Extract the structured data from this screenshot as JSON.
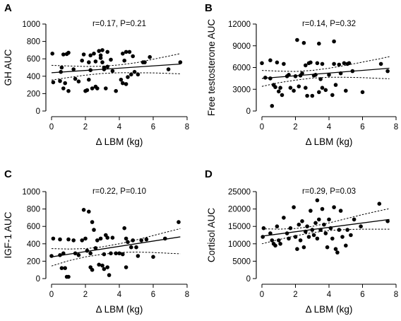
{
  "chart_data": [
    {
      "type": "scatter",
      "panel": "A",
      "stat": "r=0.17, P=0.21",
      "xlabel": "Δ LBM (kg)",
      "ylabel": "GH AUC",
      "xlim": [
        0,
        8
      ],
      "ylim": [
        0,
        1000
      ],
      "xticks": [
        "0",
        "2",
        "4",
        "6",
        "8"
      ],
      "yticks": [
        "0",
        "200",
        "400",
        "600",
        "800",
        "1000"
      ],
      "points": [
        [
          0.05,
          660
        ],
        [
          0.1,
          330
        ],
        [
          0.5,
          345
        ],
        [
          0.55,
          450
        ],
        [
          0.6,
          500
        ],
        [
          0.7,
          260
        ],
        [
          0.7,
          650
        ],
        [
          0.8,
          320
        ],
        [
          0.9,
          655
        ],
        [
          1.0,
          670
        ],
        [
          1.0,
          230
        ],
        [
          1.3,
          480
        ],
        [
          1.4,
          370
        ],
        [
          1.6,
          340
        ],
        [
          1.8,
          580
        ],
        [
          1.9,
          650
        ],
        [
          2.0,
          230
        ],
        [
          2.1,
          240
        ],
        [
          2.2,
          560
        ],
        [
          2.2,
          360
        ],
        [
          2.3,
          470
        ],
        [
          2.3,
          640
        ],
        [
          2.4,
          260
        ],
        [
          2.5,
          660
        ],
        [
          2.6,
          280
        ],
        [
          2.6,
          570
        ],
        [
          2.7,
          260
        ],
        [
          2.8,
          690
        ],
        [
          2.9,
          640
        ],
        [
          2.9,
          610
        ],
        [
          3.0,
          700
        ],
        [
          3.0,
          560
        ],
        [
          3.1,
          480
        ],
        [
          3.1,
          500
        ],
        [
          3.2,
          260
        ],
        [
          3.3,
          680
        ],
        [
          3.3,
          510
        ],
        [
          3.5,
          590
        ],
        [
          3.6,
          460
        ],
        [
          3.8,
          230
        ],
        [
          4.1,
          360
        ],
        [
          4.2,
          320
        ],
        [
          4.2,
          660
        ],
        [
          4.3,
          580
        ],
        [
          4.4,
          310
        ],
        [
          4.4,
          680
        ],
        [
          4.5,
          390
        ],
        [
          4.6,
          680
        ],
        [
          4.7,
          420
        ],
        [
          4.8,
          630
        ],
        [
          4.9,
          450
        ],
        [
          5.1,
          420
        ],
        [
          5.4,
          560
        ],
        [
          5.5,
          560
        ],
        [
          5.8,
          620
        ],
        [
          6.9,
          480
        ],
        [
          7.6,
          560
        ]
      ],
      "fit": {
        "x": [
          0,
          7.6
        ],
        "y": [
          440,
          540
        ]
      },
      "ci_upper": {
        "x": [
          0,
          1,
          2,
          3,
          4,
          5,
          6,
          7,
          7.6
        ],
        "y": [
          525,
          518,
          512,
          515,
          530,
          555,
          595,
          635,
          660
        ]
      },
      "ci_lower": {
        "x": [
          0,
          1,
          2,
          3,
          4,
          5,
          6,
          7,
          7.6
        ],
        "y": [
          355,
          385,
          412,
          432,
          440,
          440,
          438,
          432,
          428
        ]
      }
    },
    {
      "type": "scatter",
      "panel": "B",
      "stat": "r=0.14, P=0.32",
      "xlabel": "Δ LBM (kg)",
      "ylabel": "Free testosterone AUC",
      "xlim": [
        0,
        8
      ],
      "ylim": [
        0,
        12000
      ],
      "xticks": [
        "0",
        "2",
        "4",
        "6",
        "8"
      ],
      "yticks": [
        "0",
        "3000",
        "6000",
        "9000",
        "12000"
      ],
      "points": [
        [
          0.0,
          6600
        ],
        [
          0.2,
          4600
        ],
        [
          0.5,
          7000
        ],
        [
          0.5,
          4500
        ],
        [
          0.6,
          700
        ],
        [
          0.7,
          3600
        ],
        [
          0.8,
          3300
        ],
        [
          0.9,
          6700
        ],
        [
          1.0,
          2700
        ],
        [
          1.1,
          3200
        ],
        [
          1.2,
          2200
        ],
        [
          1.3,
          6500
        ],
        [
          1.5,
          4800
        ],
        [
          1.6,
          5000
        ],
        [
          1.7,
          3200
        ],
        [
          1.9,
          2800
        ],
        [
          2.0,
          4800
        ],
        [
          2.1,
          9800
        ],
        [
          2.2,
          3400
        ],
        [
          2.3,
          4900
        ],
        [
          2.4,
          5200
        ],
        [
          2.5,
          9400
        ],
        [
          2.6,
          3200
        ],
        [
          2.6,
          6300
        ],
        [
          2.7,
          2100
        ],
        [
          2.8,
          6600
        ],
        [
          2.9,
          6700
        ],
        [
          3.0,
          2100
        ],
        [
          3.1,
          4900
        ],
        [
          3.2,
          5000
        ],
        [
          3.3,
          6600
        ],
        [
          3.4,
          2600
        ],
        [
          3.4,
          9300
        ],
        [
          3.5,
          4400
        ],
        [
          3.6,
          6500
        ],
        [
          3.6,
          3200
        ],
        [
          3.8,
          2900
        ],
        [
          4.0,
          5000
        ],
        [
          4.2,
          2200
        ],
        [
          4.3,
          6500
        ],
        [
          4.3,
          9600
        ],
        [
          4.4,
          3600
        ],
        [
          4.6,
          6400
        ],
        [
          4.7,
          5200
        ],
        [
          4.9,
          6600
        ],
        [
          5.0,
          2800
        ],
        [
          5.1,
          6500
        ],
        [
          5.2,
          6600
        ],
        [
          5.4,
          5500
        ],
        [
          6.0,
          2600
        ],
        [
          7.1,
          6500
        ],
        [
          7.5,
          5500
        ]
      ],
      "fit": {
        "x": [
          0,
          7.6
        ],
        "y": [
          4500,
          5900
        ]
      },
      "ci_upper": {
        "x": [
          0,
          1,
          2,
          3,
          4,
          5,
          6,
          7,
          7.6
        ],
        "y": [
          5600,
          5500,
          5450,
          5600,
          5900,
          6300,
          6750,
          7200,
          7500
        ]
      },
      "ci_lower": {
        "x": [
          0,
          1,
          2,
          3,
          4,
          5,
          6,
          7,
          7.6
        ],
        "y": [
          3400,
          3900,
          4250,
          4550,
          4650,
          4650,
          4600,
          4500,
          4450
        ]
      }
    },
    {
      "type": "scatter",
      "panel": "C",
      "stat": "r=0.22, P=0.10",
      "xlabel": "Δ LBM (kg)",
      "ylabel": "IGF-1 AUC",
      "xlim": [
        0,
        8
      ],
      "ylim": [
        0,
        1000
      ],
      "xticks": [
        "0",
        "2",
        "4",
        "6",
        "8"
      ],
      "yticks": [
        "0",
        "200",
        "400",
        "600",
        "800",
        "1000"
      ],
      "points": [
        [
          0.0,
          260
        ],
        [
          0.1,
          460
        ],
        [
          0.5,
          270
        ],
        [
          0.5,
          450
        ],
        [
          0.6,
          120
        ],
        [
          0.7,
          290
        ],
        [
          0.8,
          120
        ],
        [
          0.9,
          20
        ],
        [
          1.0,
          20
        ],
        [
          1.0,
          450
        ],
        [
          1.3,
          440
        ],
        [
          1.4,
          290
        ],
        [
          1.6,
          270
        ],
        [
          1.8,
          440
        ],
        [
          1.9,
          790
        ],
        [
          2.0,
          460
        ],
        [
          2.1,
          320
        ],
        [
          2.2,
          770
        ],
        [
          2.3,
          130
        ],
        [
          2.3,
          290
        ],
        [
          2.4,
          650
        ],
        [
          2.4,
          100
        ],
        [
          2.5,
          560
        ],
        [
          2.6,
          350
        ],
        [
          2.7,
          440
        ],
        [
          2.8,
          160
        ],
        [
          2.9,
          460
        ],
        [
          3.0,
          150
        ],
        [
          3.1,
          280
        ],
        [
          3.1,
          110
        ],
        [
          3.2,
          500
        ],
        [
          3.3,
          130
        ],
        [
          3.3,
          470
        ],
        [
          3.4,
          40
        ],
        [
          3.5,
          290
        ],
        [
          3.6,
          470
        ],
        [
          3.8,
          290
        ],
        [
          4.0,
          290
        ],
        [
          4.2,
          280
        ],
        [
          4.3,
          580
        ],
        [
          4.4,
          460
        ],
        [
          4.4,
          130
        ],
        [
          4.5,
          420
        ],
        [
          4.7,
          360
        ],
        [
          4.8,
          440
        ],
        [
          5.0,
          360
        ],
        [
          5.1,
          260
        ],
        [
          5.3,
          440
        ],
        [
          5.6,
          450
        ],
        [
          6.0,
          250
        ],
        [
          6.7,
          460
        ],
        [
          7.5,
          650
        ]
      ],
      "fit": {
        "x": [
          0,
          7.6
        ],
        "y": [
          250,
          480
        ]
      },
      "ci_upper": {
        "x": [
          0,
          1,
          2,
          3,
          4,
          5,
          6,
          7,
          7.6
        ],
        "y": [
          345,
          340,
          345,
          365,
          400,
          445,
          495,
          545,
          575
        ]
      },
      "ci_lower": {
        "x": [
          0,
          1,
          2,
          3,
          4,
          5,
          6,
          7,
          7.6
        ],
        "y": [
          145,
          205,
          250,
          280,
          300,
          305,
          300,
          290,
          285
        ]
      }
    },
    {
      "type": "scatter",
      "panel": "D",
      "stat": "r=0.29, P=0.03",
      "xlabel": "Δ LBM (kg)",
      "ylabel": "Cortisol AUC",
      "xlim": [
        0,
        8
      ],
      "ylim": [
        0,
        25000
      ],
      "xticks": [
        "0",
        "2",
        "4",
        "6",
        "8"
      ],
      "yticks": [
        "0",
        "5000",
        "10000",
        "15000",
        "20000",
        "25000"
      ],
      "points": [
        [
          0.05,
          12000
        ],
        [
          0.1,
          14500
        ],
        [
          0.5,
          13000
        ],
        [
          0.6,
          11000
        ],
        [
          0.7,
          10000
        ],
        [
          0.8,
          9500
        ],
        [
          0.9,
          15000
        ],
        [
          1.0,
          11000
        ],
        [
          1.1,
          10000
        ],
        [
          1.3,
          17500
        ],
        [
          1.5,
          13000
        ],
        [
          1.6,
          11500
        ],
        [
          1.7,
          14500
        ],
        [
          1.9,
          20500
        ],
        [
          2.0,
          12000
        ],
        [
          2.1,
          8500
        ],
        [
          2.2,
          15500
        ],
        [
          2.3,
          11000
        ],
        [
          2.4,
          16500
        ],
        [
          2.5,
          9000
        ],
        [
          2.6,
          13500
        ],
        [
          2.7,
          15000
        ],
        [
          2.8,
          12000
        ],
        [
          2.9,
          19500
        ],
        [
          3.0,
          14000
        ],
        [
          3.1,
          12500
        ],
        [
          3.2,
          16000
        ],
        [
          3.3,
          22500
        ],
        [
          3.3,
          11500
        ],
        [
          3.4,
          17000
        ],
        [
          3.5,
          14000
        ],
        [
          3.6,
          20000
        ],
        [
          3.7,
          15500
        ],
        [
          3.8,
          13000
        ],
        [
          3.9,
          9000
        ],
        [
          4.0,
          17000
        ],
        [
          4.1,
          14500
        ],
        [
          4.2,
          11500
        ],
        [
          4.3,
          20500
        ],
        [
          4.4,
          8500
        ],
        [
          4.5,
          7500
        ],
        [
          4.6,
          14000
        ],
        [
          4.7,
          19500
        ],
        [
          4.8,
          12000
        ],
        [
          5.0,
          9500
        ],
        [
          5.1,
          14000
        ],
        [
          5.3,
          12500
        ],
        [
          5.5,
          17000
        ],
        [
          5.9,
          15000
        ],
        [
          7.0,
          21500
        ],
        [
          7.5,
          16500
        ]
      ],
      "fit": {
        "x": [
          0,
          7.6
        ],
        "y": [
          12200,
          17000
        ]
      },
      "ci_upper": {
        "x": [
          0,
          1,
          2,
          3,
          4,
          5,
          6,
          7,
          7.6
        ],
        "y": [
          14300,
          14200,
          14400,
          15000,
          16000,
          17200,
          18400,
          19500,
          20100
        ]
      },
      "ci_lower": {
        "x": [
          0,
          1,
          2,
          3,
          4,
          5,
          6,
          7,
          7.6
        ],
        "y": [
          10000,
          11200,
          12300,
          13200,
          13800,
          14100,
          14200,
          14200,
          14200
        ]
      }
    }
  ]
}
